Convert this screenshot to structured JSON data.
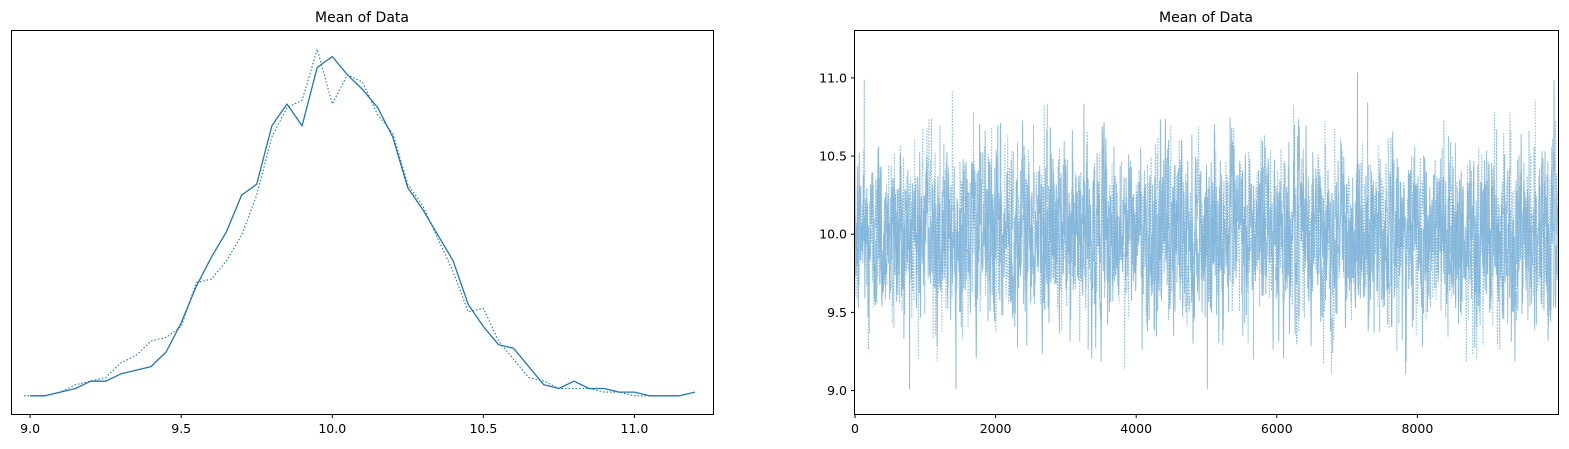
{
  "colors": {
    "kde": "#1f77b4",
    "trace": "#7eb3d8"
  },
  "chart_data": [
    {
      "type": "line",
      "title": "Mean of Data",
      "xlabel": "",
      "ylabel": "",
      "xlim": [
        8.94,
        11.26
      ],
      "ylim": [
        -0.05,
        1.0
      ],
      "xticks": [
        9.0,
        9.5,
        10.0,
        10.5,
        11.0
      ],
      "xtick_labels": [
        "9.0",
        "9.5",
        "10.0",
        "10.5",
        "11.0"
      ],
      "yticks": [],
      "grid": false,
      "series": [
        {
          "style": "solid",
          "x": [
            9.0,
            9.05,
            9.1,
            9.15,
            9.2,
            9.25,
            9.3,
            9.35,
            9.4,
            9.45,
            9.5,
            9.55,
            9.6,
            9.65,
            9.7,
            9.75,
            9.8,
            9.85,
            9.9,
            9.95,
            10.0,
            10.05,
            10.1,
            10.15,
            10.2,
            10.25,
            10.3,
            10.35,
            10.4,
            10.45,
            10.5,
            10.55,
            10.6,
            10.65,
            10.7,
            10.75,
            10.8,
            10.85,
            10.9,
            10.95,
            11.0,
            11.05,
            11.1,
            11.15,
            11.2
          ],
          "y": [
            0.0,
            0.0,
            0.01,
            0.02,
            0.04,
            0.04,
            0.06,
            0.07,
            0.08,
            0.12,
            0.2,
            0.3,
            0.38,
            0.45,
            0.55,
            0.58,
            0.74,
            0.8,
            0.74,
            0.9,
            0.93,
            0.88,
            0.84,
            0.79,
            0.71,
            0.57,
            0.51,
            0.44,
            0.37,
            0.25,
            0.19,
            0.14,
            0.13,
            0.08,
            0.03,
            0.02,
            0.04,
            0.02,
            0.02,
            0.01,
            0.01,
            0.0,
            0.0,
            0.0,
            0.01
          ]
        },
        {
          "style": "dotted",
          "x": [
            8.98,
            9.05,
            9.1,
            9.15,
            9.2,
            9.25,
            9.3,
            9.35,
            9.4,
            9.45,
            9.5,
            9.55,
            9.6,
            9.65,
            9.7,
            9.75,
            9.8,
            9.85,
            9.9,
            9.95,
            10.0,
            10.05,
            10.1,
            10.15,
            10.2,
            10.25,
            10.3,
            10.35,
            10.4,
            10.45,
            10.5,
            10.55,
            10.6,
            10.65,
            10.7,
            10.75,
            10.8,
            10.85,
            10.9,
            10.95,
            11.0,
            11.05,
            11.1
          ],
          "y": [
            0.0,
            0.0,
            0.01,
            0.03,
            0.04,
            0.05,
            0.09,
            0.11,
            0.15,
            0.16,
            0.19,
            0.31,
            0.32,
            0.37,
            0.44,
            0.55,
            0.71,
            0.79,
            0.81,
            0.95,
            0.8,
            0.88,
            0.86,
            0.77,
            0.72,
            0.58,
            0.52,
            0.43,
            0.34,
            0.23,
            0.24,
            0.15,
            0.1,
            0.05,
            0.04,
            0.02,
            0.02,
            0.02,
            0.01,
            0.01,
            0.0,
            0.0,
            0.0
          ]
        }
      ]
    },
    {
      "type": "line",
      "title": "Mean of Data",
      "xlabel": "",
      "ylabel": "",
      "xlim": [
        0,
        10000
      ],
      "ylim": [
        8.85,
        11.3
      ],
      "xticks": [
        0,
        2000,
        4000,
        6000,
        8000
      ],
      "xtick_labels": [
        "0",
        "2000",
        "4000",
        "6000",
        "8000"
      ],
      "yticks": [
        9.0,
        9.5,
        10.0,
        10.5,
        11.0
      ],
      "ytick_labels": [
        "9.0",
        "9.5",
        "10.0",
        "10.5",
        "11.0"
      ],
      "grid": false,
      "series": [
        {
          "style": "solid",
          "n_draws": 10000,
          "mean": 10.0,
          "sd": 0.28,
          "min": 9.01,
          "max": 11.18
        },
        {
          "style": "dotted",
          "n_draws": 10000,
          "mean": 10.0,
          "sd": 0.28,
          "min": 8.97,
          "max": 11.12
        }
      ]
    }
  ]
}
